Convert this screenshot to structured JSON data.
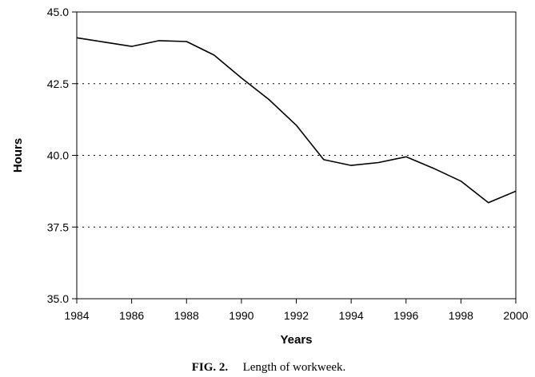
{
  "chart_data": {
    "type": "line",
    "xlabel": "Years",
    "ylabel": "Hours",
    "xlim": [
      1984,
      2000
    ],
    "ylim": [
      35.0,
      45.0
    ],
    "x_ticks": [
      "1984",
      "1986",
      "1988",
      "1990",
      "1992",
      "1994",
      "1996",
      "1998",
      "2000"
    ],
    "y_ticks": [
      "35.0",
      "37.5",
      "40.0",
      "42.5",
      "45.0"
    ],
    "grid": "horizontal dotted",
    "series": [
      {
        "x": [
          1984,
          1985,
          1986,
          1987,
          1988,
          1989,
          1990,
          1991,
          1992,
          1993,
          1994,
          1995,
          1996,
          1997,
          1998,
          1999,
          2000
        ],
        "y": [
          44.1,
          43.95,
          43.8,
          44.0,
          43.97,
          43.5,
          42.7,
          41.95,
          41.05,
          39.85,
          39.65,
          39.75,
          39.95,
          39.55,
          39.1,
          38.35,
          38.75
        ]
      }
    ],
    "caption_label": "FIG. 2.",
    "caption_text": "Length of workweek."
  }
}
